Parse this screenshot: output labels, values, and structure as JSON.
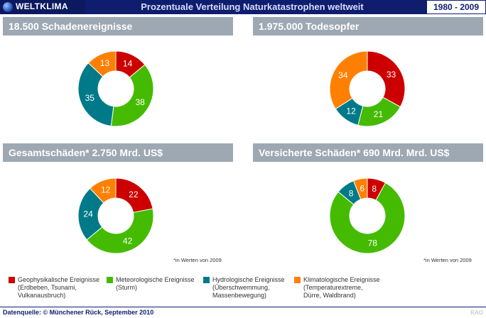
{
  "header": {
    "brand": "WELTKLIMA",
    "title": "Prozentuale Verteilung Naturkatastrophen weltweit",
    "period": "1980 - 2009"
  },
  "panels": [
    {
      "title": "18.500 Schadenereignisse",
      "footnote": ""
    },
    {
      "title": "1.975.000 Todesopfer",
      "footnote": ""
    },
    {
      "title": "Gesamtschäden* 2.750 Mrd. US$",
      "footnote": "*in Werten von 2009"
    },
    {
      "title": "Versicherte Schäden* 690 Mrd. Mrd. US$",
      "footnote": "*in Werten von 2009"
    }
  ],
  "legend": [
    {
      "label": "Geophysikalische Ereignisse",
      "sub": [
        "(Erdbeben, Tsunami,",
        "Vulkanausbruch)"
      ]
    },
    {
      "label": "Meteorologische Ereignisse",
      "sub": [
        "(Sturm)"
      ]
    },
    {
      "label": "Hydrologische Ereignisse",
      "sub": [
        "(Überschwemmung,",
        "Massenbewegung)"
      ]
    },
    {
      "label": "Klimatologische Ereignisse",
      "sub": [
        "(Temperaturextreme,",
        "Dürre, Waldbrand)"
      ]
    }
  ],
  "colors": {
    "geo": "#cc0000",
    "met": "#44bb00",
    "hyd": "#007a88",
    "kli": "#ff8000"
  },
  "footer": {
    "source": "Datenquelle: © Münchener Rück,  September 2010",
    "mark": "RAO"
  },
  "chart_data": [
    {
      "type": "pie",
      "title": "18.500 Schadenereignisse",
      "categories": [
        "Geophysikalische Ereignisse",
        "Meteorologische Ereignisse",
        "Hydrologische Ereignisse",
        "Klimatologische Ereignisse"
      ],
      "values": [
        14,
        38,
        35,
        13
      ]
    },
    {
      "type": "pie",
      "title": "1.975.000 Todesopfer",
      "categories": [
        "Geophysikalische Ereignisse",
        "Meteorologische Ereignisse",
        "Hydrologische Ereignisse",
        "Klimatologische Ereignisse"
      ],
      "values": [
        33,
        21,
        12,
        34
      ]
    },
    {
      "type": "pie",
      "title": "Gesamtschäden* 2.750 Mrd. US$",
      "categories": [
        "Geophysikalische Ereignisse",
        "Meteorologische Ereignisse",
        "Hydrologische Ereignisse",
        "Klimatologische Ereignisse"
      ],
      "values": [
        22,
        42,
        24,
        12
      ]
    },
    {
      "type": "pie",
      "title": "Versicherte Schäden* 690 Mrd. Mrd. US$",
      "categories": [
        "Geophysikalische Ereignisse",
        "Meteorologische Ereignisse",
        "Hydrologische Ereignisse",
        "Klimatologische Ereignisse"
      ],
      "values": [
        8,
        78,
        8,
        6
      ]
    }
  ]
}
